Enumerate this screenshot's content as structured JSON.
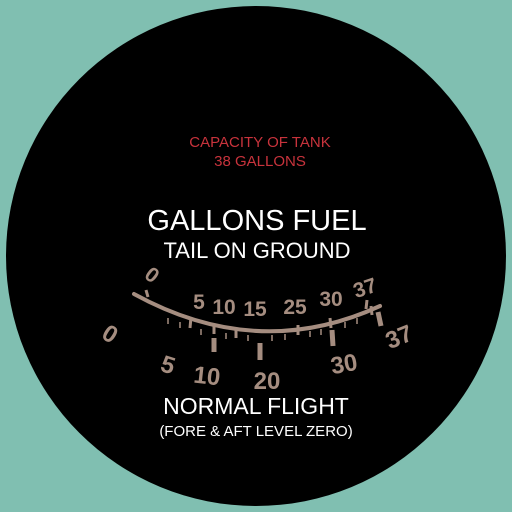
{
  "colors": {
    "background": "#80bfb1",
    "dial_face": "#000000",
    "scale": "#a58d80",
    "capacity_text": "#c8333c",
    "main_text": "#ffffff"
  },
  "gauge": {
    "capacity_line1": "CAPACITY OF TANK",
    "capacity_line2": "38 GALLONS",
    "title": "GALLONS FUEL",
    "upper_scale_label": "TAIL ON GROUND",
    "lower_scale_label_line1": "NORMAL FLIGHT",
    "lower_scale_label_line2": "(FORE & AFT LEVEL ZERO)",
    "upper_scale": [
      "0",
      "5",
      "10",
      "15",
      "25",
      "30",
      "37"
    ],
    "lower_scale": [
      "0",
      "5",
      "10",
      "20",
      "30",
      "37"
    ]
  }
}
